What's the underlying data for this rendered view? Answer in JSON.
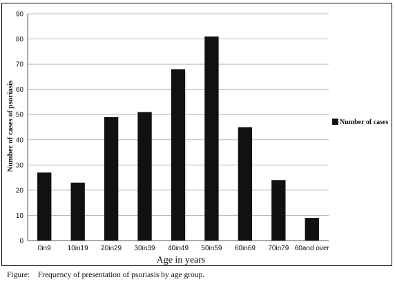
{
  "chart_data": {
    "type": "bar",
    "categories": [
      "0in9",
      "10in19",
      "20in29",
      "30in39",
      "40in49",
      "50in59",
      "60in69",
      "70in79",
      "60and over"
    ],
    "series": [
      {
        "name": "Number of cases",
        "values": [
          27,
          23,
          49,
          51,
          68,
          81,
          45,
          24,
          9
        ],
        "color": "#111111"
      }
    ],
    "xlabel": "Age in years",
    "ylabel": "Number of cases of psoriasis",
    "ylim": [
      0,
      90
    ],
    "yticks": [
      0,
      10,
      20,
      30,
      40,
      50,
      60,
      70,
      80,
      90
    ],
    "grid": true,
    "legend_position": "right"
  },
  "caption": "Figure:    Frequency of presentation of psoriasis by age group."
}
